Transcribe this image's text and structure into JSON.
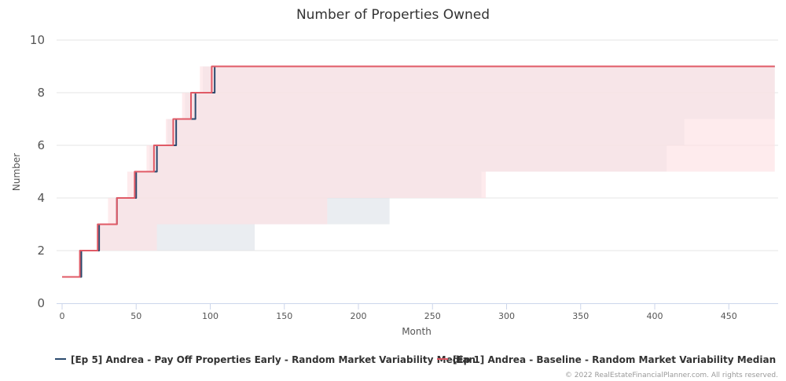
{
  "chart_data": {
    "type": "line",
    "title": "Number of Properties Owned",
    "xlabel": "Month",
    "ylabel": "Number",
    "xlim": [
      0,
      485
    ],
    "ylim": [
      0,
      10
    ],
    "x_ticks": [
      0,
      50,
      100,
      150,
      200,
      250,
      300,
      350,
      400,
      450
    ],
    "y_ticks": [
      0,
      2,
      4,
      6,
      8,
      10
    ],
    "grid": true,
    "legend_position": "bottom",
    "series": [
      {
        "name": "[Ep 5] Andrea - Pay Off Properties Early - Random Market Variability Median",
        "color": "#2b4a6e",
        "band_color": "#dfe4ea",
        "steps": [
          [
            0,
            1
          ],
          [
            13,
            2
          ],
          [
            25,
            3
          ],
          [
            37,
            4
          ],
          [
            50,
            5
          ],
          [
            64,
            6
          ],
          [
            77,
            7
          ],
          [
            90,
            8
          ],
          [
            103,
            9
          ],
          [
            481,
            9
          ]
        ],
        "band": [
          {
            "x0": 95,
            "x1": 481,
            "low": 8,
            "high": 9
          },
          {
            "x0": 83,
            "x1": 481,
            "low": 7,
            "high": 8
          },
          {
            "x0": 71,
            "x1": 420,
            "low": 6,
            "high": 7
          },
          {
            "x0": 59,
            "x1": 408,
            "low": 5,
            "high": 6
          },
          {
            "x0": 50,
            "x1": 283,
            "low": 4,
            "high": 5
          },
          {
            "x0": 37,
            "x1": 221,
            "low": 3,
            "high": 4
          },
          {
            "x0": 25,
            "x1": 130,
            "low": 2,
            "high": 3
          }
        ]
      },
      {
        "name": "[Ep 1] Andrea - Baseline - Random Market Variability Median",
        "color": "#e05a66",
        "band_color": "#fde1e3",
        "steps": [
          [
            0,
            1
          ],
          [
            12,
            2
          ],
          [
            24,
            3
          ],
          [
            37,
            4
          ],
          [
            49,
            5
          ],
          [
            62,
            6
          ],
          [
            75,
            7
          ],
          [
            87,
            8
          ],
          [
            101,
            9
          ],
          [
            481,
            9
          ]
        ],
        "band": [
          {
            "x0": 93,
            "x1": 481,
            "low": 8,
            "high": 9
          },
          {
            "x0": 81,
            "x1": 481,
            "low": 7,
            "high": 8
          },
          {
            "x0": 70,
            "x1": 481,
            "low": 6,
            "high": 7
          },
          {
            "x0": 57,
            "x1": 481,
            "low": 5,
            "high": 6
          },
          {
            "x0": 44,
            "x1": 286,
            "low": 4,
            "high": 5
          },
          {
            "x0": 31,
            "x1": 179,
            "low": 3,
            "high": 4
          },
          {
            "x0": 25,
            "x1": 64,
            "low": 2,
            "high": 3
          }
        ]
      }
    ],
    "credit": "© 2022 RealEstateFinancialPlanner.com. All rights reserved."
  }
}
